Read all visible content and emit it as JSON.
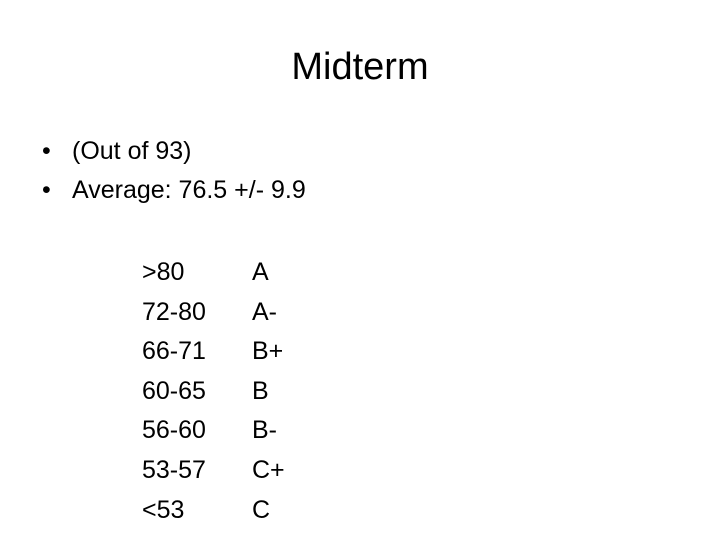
{
  "slide": {
    "title": "Midterm",
    "bullets": [
      {
        "text": "(Out of 93)"
      },
      {
        "text": "Average: 76.5 +/- 9.9"
      }
    ],
    "bullet_glyph": "•",
    "grades": [
      {
        "range": ">80",
        "grade": "A"
      },
      {
        "range": "72-80",
        "grade": "A-"
      },
      {
        "range": "66-71",
        "grade": "B+"
      },
      {
        "range": "60-65",
        "grade": "B"
      },
      {
        "range": "56-60",
        "grade": "B-"
      },
      {
        "range": "53-57",
        "grade": "C+"
      },
      {
        "range": "<53",
        "grade": "C"
      }
    ]
  }
}
